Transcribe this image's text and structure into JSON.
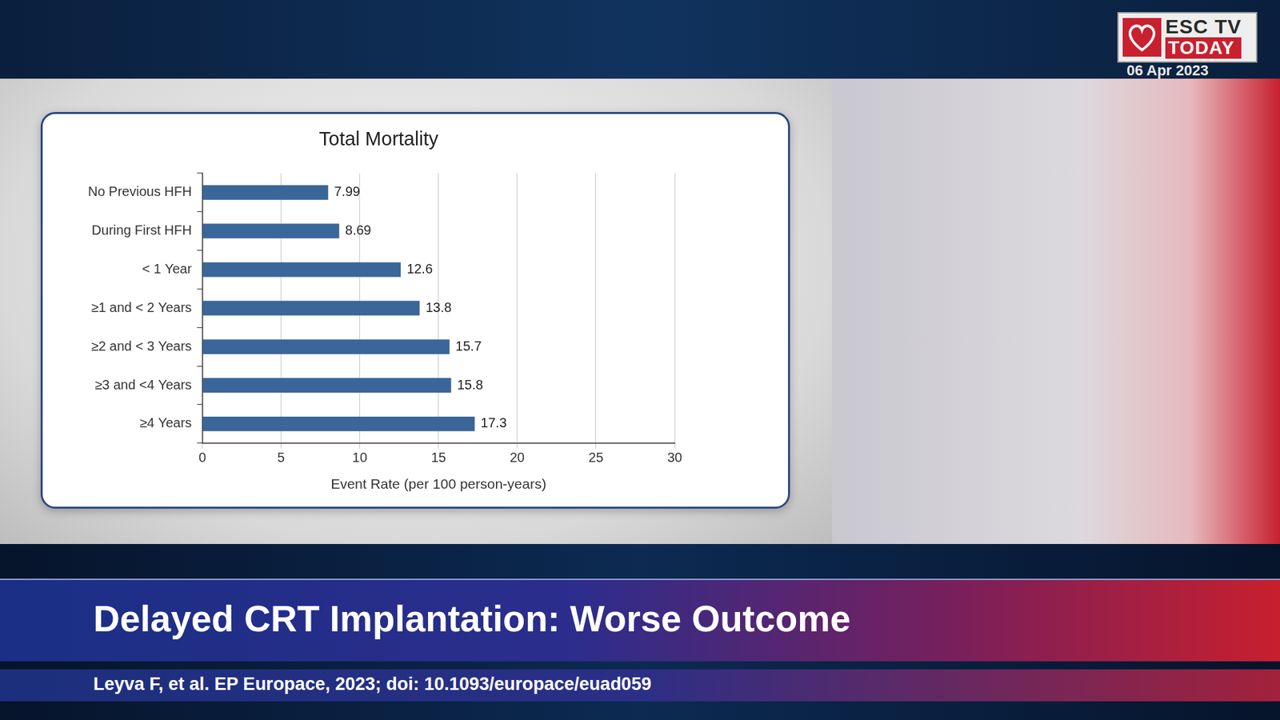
{
  "page": {
    "logo": {
      "line1": "ESC TV",
      "line2": "TODAY"
    },
    "date": "06 Apr 2023",
    "headline": "Delayed CRT Implantation: Worse Outcome",
    "citation": "Leyva F, et al. EP Europace, 2023; doi: 10.1093/europace/euad059"
  },
  "chart_data": {
    "type": "bar",
    "orientation": "horizontal",
    "title": "Total Mortality",
    "x_label": "Event Rate (per 100 person-years)",
    "categories": [
      "No Previous HFH",
      "During First HFH",
      "< 1 Year",
      "≥1 and < 2 Years",
      "≥2 and < 3 Years",
      "≥3 and <4 Years",
      "≥4 Years"
    ],
    "values": [
      7.99,
      8.69,
      12.6,
      13.8,
      15.7,
      15.8,
      17.3
    ],
    "color": "#3a6699",
    "xlim": [
      0,
      30
    ],
    "xticks": [
      0,
      5,
      10,
      15,
      20,
      25,
      30
    ],
    "grid": true,
    "data_labels": true
  }
}
